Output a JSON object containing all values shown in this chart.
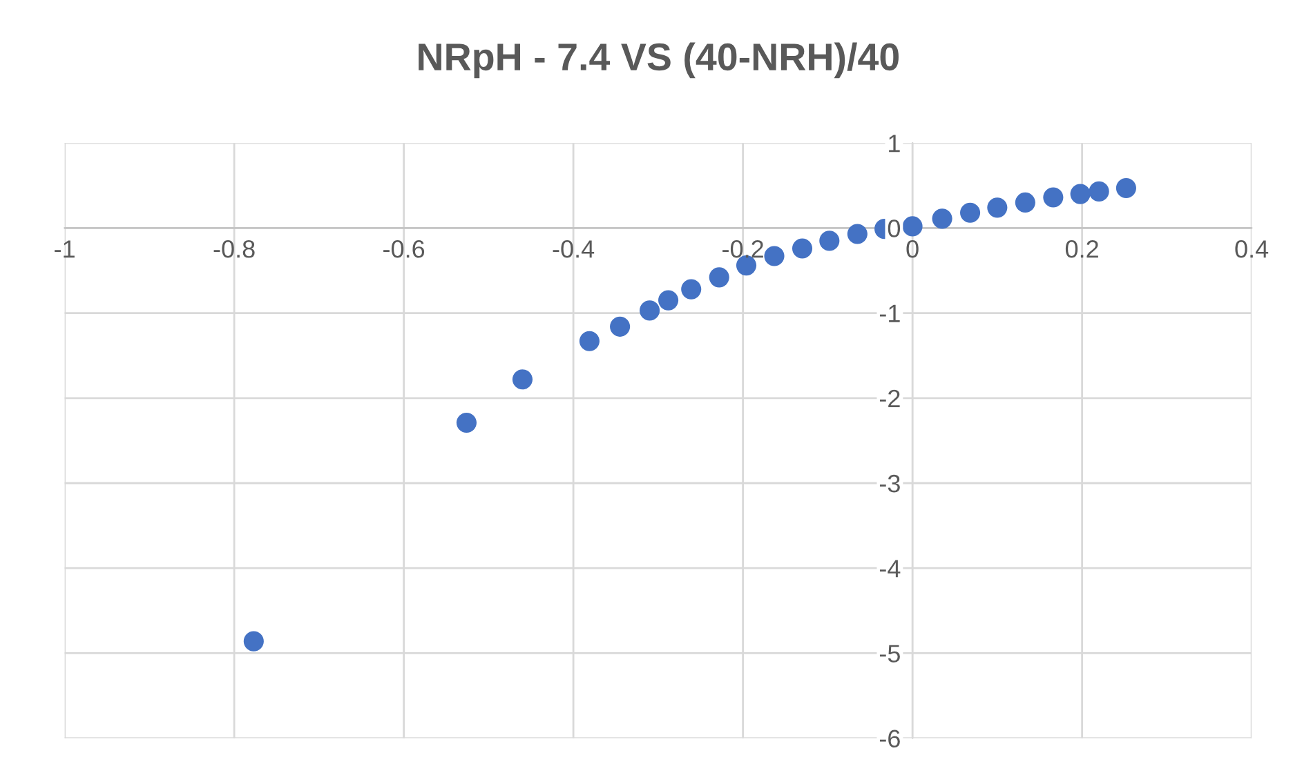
{
  "chart_data": {
    "type": "scatter",
    "title": "NRpH - 7.4 VS (40-NRH)/40",
    "series": [
      {
        "color": "#4472c4",
        "x": [
          -0.777,
          -0.526,
          -0.46,
          -0.381,
          -0.345,
          -0.31,
          -0.288,
          -0.261,
          -0.228,
          -0.196,
          -0.163,
          -0.13,
          -0.098,
          -0.065,
          -0.033,
          0.0,
          0.035,
          0.068,
          0.1,
          0.133,
          0.166,
          0.198,
          0.22,
          0.252
        ],
        "values": [
          -4.86,
          -2.29,
          -1.78,
          -1.33,
          -1.16,
          -0.97,
          -0.85,
          -0.72,
          -0.58,
          -0.44,
          -0.33,
          -0.24,
          -0.15,
          -0.07,
          -0.01,
          0.02,
          0.11,
          0.18,
          0.24,
          0.3,
          0.36,
          0.4,
          0.43,
          0.47
        ]
      }
    ],
    "xlim": [
      -1,
      0.4
    ],
    "xticks": [
      -1,
      -0.8,
      -0.6,
      -0.4,
      -0.2,
      0,
      0.2,
      0.4
    ],
    "ylim": [
      -6,
      1
    ],
    "yticks": [
      -6,
      -5,
      -4,
      -3,
      -2,
      -1,
      0,
      1
    ],
    "grid": true,
    "marker": "circle"
  }
}
